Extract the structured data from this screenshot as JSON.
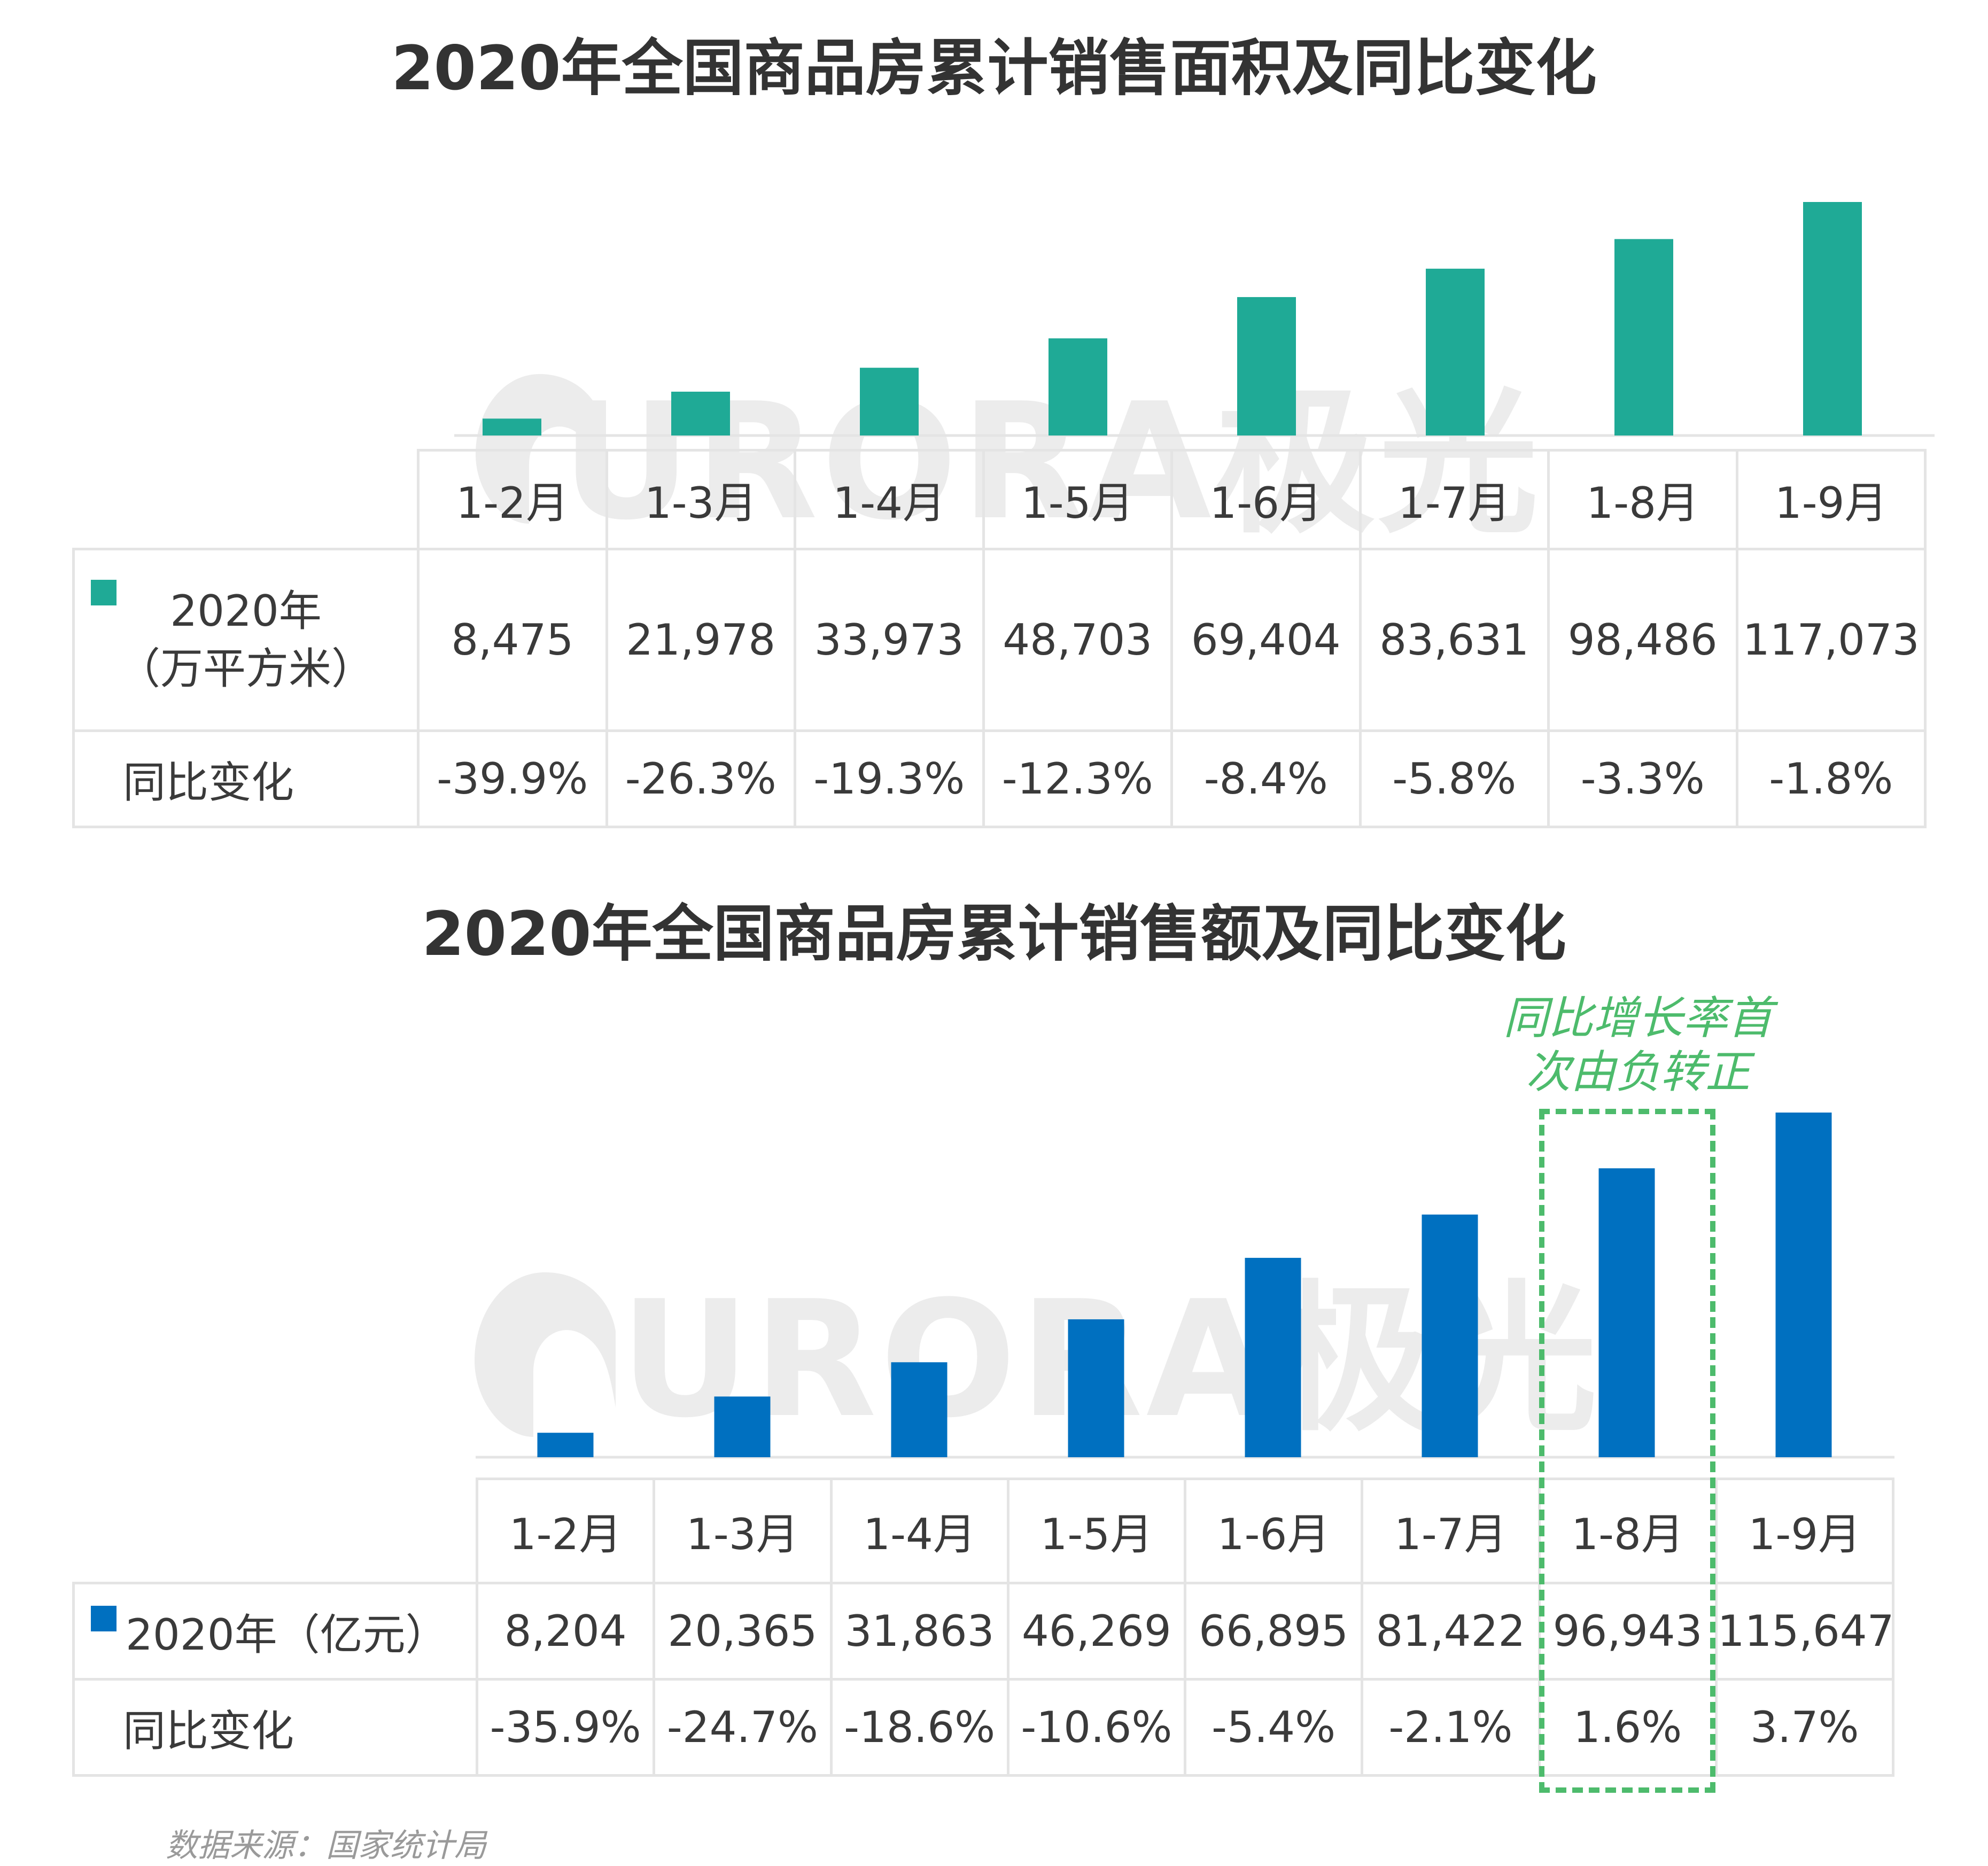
{
  "charts": [
    {
      "title": "2020年全国商品房累计销售面积及同比变化",
      "color": "#1faa96",
      "legend_label": [
        "2020年",
        "（万平方米）"
      ],
      "yoy_label": "同比变化",
      "value_display": [
        "8,475",
        "21,978",
        "33,973",
        "48,703",
        "69,404",
        "83,631",
        "98,486",
        "117,073"
      ],
      "yoy_display": [
        "-39.9%",
        "-26.3%",
        "-19.3%",
        "-12.3%",
        "-8.4%",
        "-5.8%",
        "-3.3%",
        "-1.8%"
      ]
    },
    {
      "title": "2020年全国商品房累计销售额及同比变化",
      "color": "#0070c0",
      "legend_label": [
        "2020年（亿元）"
      ],
      "yoy_label": "同比变化",
      "value_display": [
        "8,204",
        "20,365",
        "31,863",
        "46,269",
        "66,895",
        "81,422",
        "96,943",
        "115,647"
      ],
      "yoy_display": [
        "-35.9%",
        "-24.7%",
        "-18.6%",
        "-10.6%",
        "-5.4%",
        "-2.1%",
        "1.6%",
        "3.7%"
      ]
    }
  ],
  "chart_data": [
    {
      "type": "bar",
      "title": "2020年全国商品房累计销售面积及同比变化",
      "categories": [
        "1-2月",
        "1-3月",
        "1-4月",
        "1-5月",
        "1-6月",
        "1-7月",
        "1-8月",
        "1-9月"
      ],
      "series": [
        {
          "name": "2020年（万平方米）",
          "values": [
            8475,
            21978,
            33973,
            48703,
            69404,
            83631,
            98486,
            117073
          ]
        },
        {
          "name": "同比变化",
          "values": [
            -39.9,
            -26.3,
            -19.3,
            -12.3,
            -8.4,
            -5.8,
            -3.3,
            -1.8
          ],
          "unit": "%"
        }
      ],
      "xlabel": "",
      "ylabel": "",
      "ylim": [
        0,
        117073
      ]
    },
    {
      "type": "bar",
      "title": "2020年全国商品房累计销售额及同比变化",
      "categories": [
        "1-2月",
        "1-3月",
        "1-4月",
        "1-5月",
        "1-6月",
        "1-7月",
        "1-8月",
        "1-9月"
      ],
      "series": [
        {
          "name": "2020年（亿元）",
          "values": [
            8204,
            20365,
            31863,
            46269,
            66895,
            81422,
            96943,
            115647
          ]
        },
        {
          "name": "同比变化",
          "values": [
            -35.9,
            -24.7,
            -18.6,
            -10.6,
            -5.4,
            -2.1,
            1.6,
            3.7
          ],
          "unit": "%"
        }
      ],
      "xlabel": "",
      "ylabel": "",
      "ylim": [
        0,
        115647
      ],
      "annotation": "同比增长率首次由负转正"
    }
  ],
  "annotation": {
    "line1": "同比增长率首",
    "line2": "次由负转正",
    "color": "#4dbb6c"
  },
  "watermark": {
    "text": "URORA极光",
    "color": "#ececec"
  },
  "source": "数据来源：国家统计局"
}
